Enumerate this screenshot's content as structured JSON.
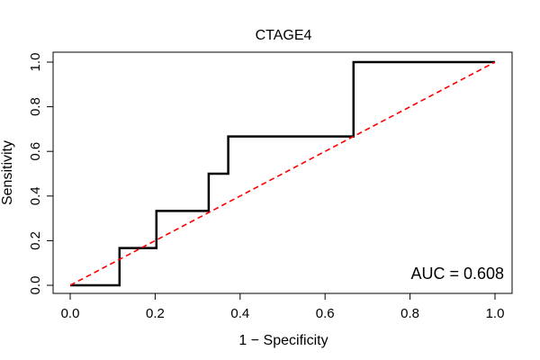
{
  "chart_data": {
    "type": "line",
    "title": "CTAGE4",
    "xlabel": "1 − Specificity",
    "ylabel": "Sensitivity",
    "xlim": [
      0,
      1
    ],
    "ylim": [
      0,
      1
    ],
    "xticks": [
      0.0,
      0.2,
      0.4,
      0.6,
      0.8,
      1.0
    ],
    "yticks": [
      0.0,
      0.2,
      0.4,
      0.6,
      0.8,
      1.0
    ],
    "xtick_labels": [
      "0.0",
      "0.2",
      "0.4",
      "0.6",
      "0.8",
      "1.0"
    ],
    "ytick_labels": [
      "0.0",
      "0.2",
      "0.4",
      "0.6",
      "0.8",
      "1.0"
    ],
    "grid": false,
    "series": [
      {
        "color": "#000000",
        "style": "step",
        "x": [
          0.0,
          0.116,
          0.116,
          0.203,
          0.203,
          0.326,
          0.326,
          0.372,
          0.372,
          0.667,
          0.667,
          1.0
        ],
        "y": [
          0.0,
          0.0,
          0.167,
          0.167,
          0.333,
          0.333,
          0.5,
          0.5,
          0.667,
          0.667,
          1.0,
          1.0
        ]
      },
      {
        "color": "#ff0000",
        "style": "dashed",
        "x": [
          0.0,
          1.0
        ],
        "y": [
          0.0,
          1.0
        ]
      }
    ],
    "annotations": [
      {
        "text": "AUC = 0.608",
        "position": "bottom-right"
      }
    ]
  }
}
